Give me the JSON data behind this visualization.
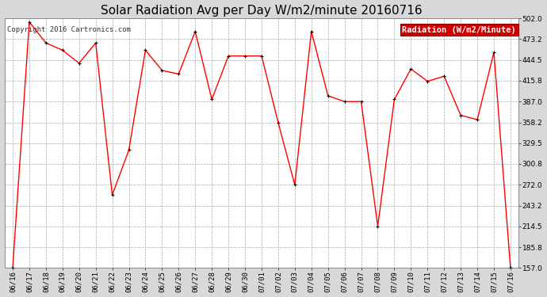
{
  "title": "Solar Radiation Avg per Day W/m2/minute 20160716",
  "copyright": "Copyright 2016 Cartronics.com",
  "legend_label": "Radiation (W/m2/Minute)",
  "background_color": "#d8d8d8",
  "plot_bg_color": "#ffffff",
  "line_color": "#ff0000",
  "marker_color": "#000000",
  "legend_bg": "#cc0000",
  "legend_text_color": "#ffffff",
  "dates": [
    "06/16",
    "06/17",
    "06/18",
    "06/19",
    "06/20",
    "06/21",
    "06/22",
    "06/23",
    "06/24",
    "06/25",
    "06/26",
    "06/27",
    "06/28",
    "06/29",
    "06/30",
    "07/01",
    "07/02",
    "07/03",
    "07/04",
    "07/05",
    "07/06",
    "07/07",
    "07/08",
    "07/09",
    "07/10",
    "07/11",
    "07/12",
    "07/13",
    "07/14",
    "07/15",
    "07/16"
  ],
  "values": [
    157.0,
    497.0,
    468.0,
    458.0,
    440.0,
    468.0,
    258.0,
    320.0,
    458.0,
    430.0,
    425.0,
    484.0,
    390.0,
    450.0,
    450.0,
    450.0,
    358.0,
    272.0,
    484.0,
    395.0,
    387.0,
    387.0,
    214.5,
    390.0,
    432.0,
    415.0,
    422.0,
    368.0,
    362.0,
    455.0,
    157.0
  ],
  "ylim": [
    157.0,
    502.0
  ],
  "yticks": [
    157.0,
    185.8,
    214.5,
    243.2,
    272.0,
    300.8,
    329.5,
    358.2,
    387.0,
    415.8,
    444.5,
    473.2,
    502.0
  ],
  "title_fontsize": 11,
  "copyright_fontsize": 6.5,
  "tick_fontsize": 6.5,
  "legend_fontsize": 7.5
}
